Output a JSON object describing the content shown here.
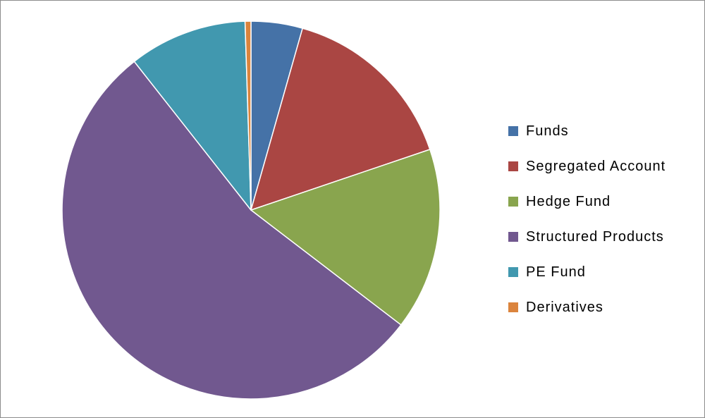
{
  "chart_data": {
    "type": "pie",
    "title": "",
    "start_angle_deg": 0,
    "direction": "clockwise",
    "legend_position": "right",
    "slices": [
      {
        "label": "Funds",
        "value": 4.4,
        "color": "#4572A7"
      },
      {
        "label": "Segregated Account",
        "value": 15.4,
        "color": "#AA4643"
      },
      {
        "label": "Hedge Fund",
        "value": 15.6,
        "color": "#89A54E"
      },
      {
        "label": "Structured Products",
        "value": 54.0,
        "color": "#71588F"
      },
      {
        "label": "PE Fund",
        "value": 10.1,
        "color": "#4198AF"
      },
      {
        "label": "Derivatives",
        "value": 0.5,
        "color": "#DB843D"
      }
    ]
  }
}
